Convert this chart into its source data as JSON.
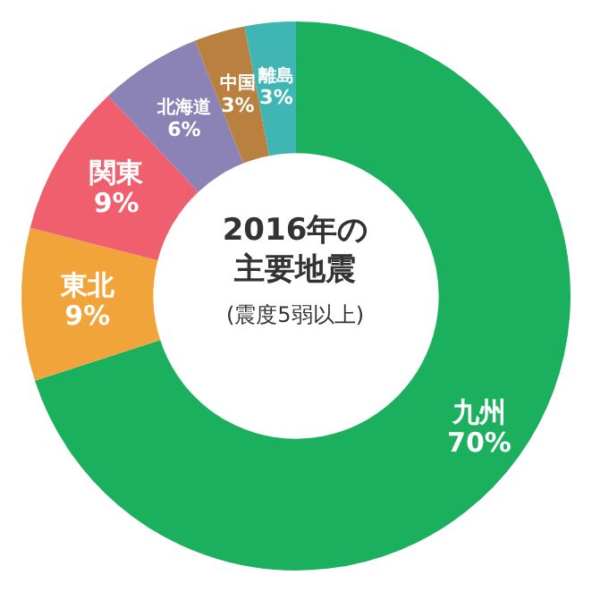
{
  "chart_data": {
    "type": "donut",
    "title": "2016年の主要地震",
    "subtitle": "(震度5弱以上)",
    "categories": [
      "九州",
      "東北",
      "関東",
      "北海道",
      "中国",
      "離島"
    ],
    "values": [
      70,
      9,
      9,
      6,
      3,
      3
    ],
    "value_labels": [
      "70%",
      "9%",
      "9%",
      "6%",
      "3%",
      "3%"
    ],
    "colors": [
      "#1bb05d",
      "#f0a43a",
      "#ef5f6e",
      "#8b82b5",
      "#b9803f",
      "#3fb6b4"
    ],
    "legend": false
  }
}
